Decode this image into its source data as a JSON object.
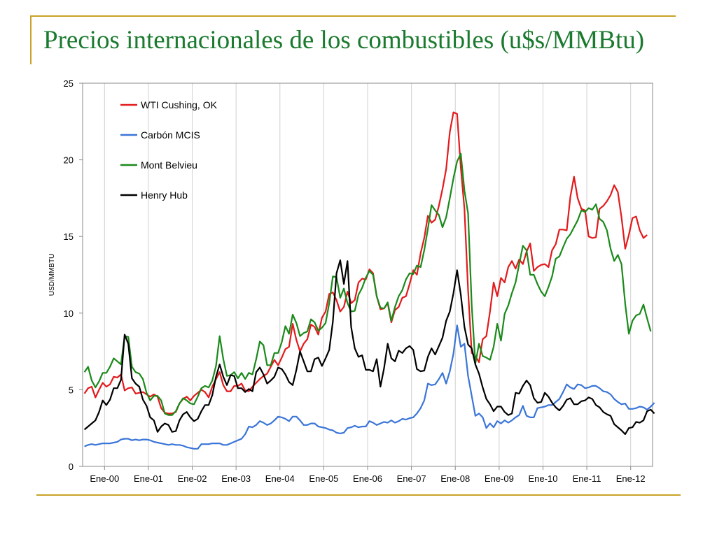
{
  "slide": {
    "title": "Precios internacionales de los combustibles (u$s/MMBtu)",
    "accent_color": "#c9a227",
    "title_color": "#1a7a2e"
  },
  "chart_data": {
    "type": "line",
    "ylabel": "USD/MMBTU",
    "ylim": [
      0,
      25
    ],
    "yticks": [
      0,
      5,
      10,
      15,
      20,
      25
    ],
    "xticks": [
      "Ene-00",
      "Ene-01",
      "Ene-02",
      "Ene-03",
      "Ene-04",
      "Ene-05",
      "Ene-06",
      "Ene-07",
      "Ene-08",
      "Ene-09",
      "Ene-10",
      "Ene-11",
      "Ene-12"
    ],
    "x_period": "monthly, Jan 2000 - Dec 2012",
    "grid": "vertical at year ticks",
    "legend_position": "top-left",
    "series": [
      {
        "name": "WTI Cushing, OK",
        "color": "#e31a1c",
        "values": [
          4.75,
          5.1,
          5.2,
          4.5,
          5.0,
          5.45,
          5.2,
          5.35,
          5.85,
          5.8,
          6.0,
          4.95,
          5.1,
          5.15,
          4.75,
          4.8,
          4.85,
          4.7,
          4.55,
          4.7,
          4.55,
          3.8,
          3.5,
          3.45,
          3.45,
          3.55,
          4.1,
          4.4,
          4.55,
          4.3,
          4.6,
          4.8,
          5.0,
          4.85,
          4.5,
          5.2,
          5.7,
          6.15,
          5.3,
          4.9,
          4.9,
          5.25,
          5.25,
          5.4,
          4.95,
          4.9,
          5.2,
          5.45,
          5.7,
          5.9,
          6.05,
          6.5,
          6.95,
          6.6,
          7.1,
          7.65,
          7.8,
          9.3,
          8.25,
          7.5,
          8.0,
          8.3,
          9.25,
          9.1,
          8.6,
          9.7,
          10.1,
          11.25,
          11.35,
          10.85,
          10.1,
          10.4,
          11.4,
          10.65,
          10.85,
          12.0,
          12.25,
          12.2,
          12.85,
          12.6,
          11.1,
          10.25,
          10.3,
          10.65,
          9.4,
          10.2,
          10.4,
          11.0,
          11.1,
          11.9,
          12.8,
          12.5,
          13.9,
          14.9,
          16.35,
          15.9,
          16.1,
          17.0,
          18.1,
          19.4,
          21.8,
          23.1,
          23.0,
          19.5,
          16.8,
          11.5,
          7.4,
          7.2,
          6.8,
          8.3,
          8.5,
          10.1,
          12.0,
          11.1,
          12.3,
          12.0,
          13.0,
          13.4,
          12.9,
          13.5,
          13.2,
          14.0,
          14.55,
          12.75,
          13.0,
          13.15,
          13.2,
          13.0,
          14.1,
          14.5,
          15.45,
          15.45,
          15.4,
          17.6,
          18.9,
          17.5,
          16.8,
          16.7,
          15.0,
          14.9,
          14.95,
          16.8,
          17.0,
          17.3,
          17.7,
          18.35,
          17.9,
          16.25,
          14.2,
          15.1,
          16.2,
          16.3,
          15.4,
          14.9,
          15.1
        ]
      },
      {
        "name": "Carbón MCIS",
        "color": "#3a75d8",
        "values": [
          1.3,
          1.4,
          1.45,
          1.4,
          1.45,
          1.5,
          1.5,
          1.5,
          1.55,
          1.6,
          1.75,
          1.8,
          1.8,
          1.7,
          1.75,
          1.7,
          1.75,
          1.75,
          1.7,
          1.6,
          1.55,
          1.5,
          1.45,
          1.4,
          1.45,
          1.4,
          1.4,
          1.35,
          1.25,
          1.2,
          1.15,
          1.15,
          1.45,
          1.45,
          1.45,
          1.5,
          1.5,
          1.5,
          1.4,
          1.4,
          1.5,
          1.6,
          1.7,
          1.8,
          2.1,
          2.6,
          2.55,
          2.7,
          2.95,
          2.85,
          2.7,
          2.8,
          3.0,
          3.25,
          3.2,
          3.1,
          2.95,
          3.25,
          3.25,
          3.0,
          2.7,
          2.7,
          2.8,
          2.8,
          2.6,
          2.55,
          2.5,
          2.4,
          2.35,
          2.2,
          2.15,
          2.2,
          2.5,
          2.55,
          2.65,
          2.55,
          2.6,
          2.6,
          2.95,
          2.85,
          2.7,
          2.8,
          2.9,
          2.85,
          3.0,
          2.85,
          2.95,
          3.1,
          3.05,
          3.15,
          3.2,
          3.45,
          3.8,
          4.3,
          5.4,
          5.3,
          5.35,
          5.7,
          6.1,
          5.4,
          6.2,
          7.35,
          9.2,
          7.8,
          8.0,
          5.9,
          4.6,
          3.3,
          3.45,
          3.2,
          2.5,
          2.8,
          2.55,
          2.95,
          2.8,
          3.0,
          2.85,
          3.0,
          3.2,
          3.35,
          3.95,
          3.3,
          3.2,
          3.2,
          3.8,
          3.85,
          3.9,
          4.0,
          4.0,
          4.2,
          4.4,
          4.85,
          5.35,
          5.15,
          5.05,
          5.35,
          5.3,
          5.1,
          5.15,
          5.25,
          5.25,
          5.1,
          4.9,
          4.85,
          4.7,
          4.4,
          4.2,
          4.05,
          4.1,
          3.75,
          3.75,
          3.8,
          3.9,
          3.85,
          3.7,
          3.9,
          4.15
        ]
      },
      {
        "name": "Mont Belvieu",
        "color": "#1a8a1a",
        "values": [
          6.15,
          6.5,
          5.6,
          5.15,
          5.55,
          6.1,
          6.1,
          6.5,
          7.05,
          6.85,
          6.65,
          8.5,
          8.45,
          6.5,
          6.15,
          6.05,
          5.7,
          4.8,
          4.3,
          4.6,
          4.6,
          4.3,
          3.45,
          3.35,
          3.35,
          3.6,
          4.1,
          4.45,
          4.3,
          4.1,
          4.05,
          4.55,
          5.1,
          5.25,
          5.15,
          5.6,
          6.55,
          8.5,
          7.0,
          5.9,
          5.95,
          6.15,
          5.75,
          6.1,
          5.7,
          6.1,
          6.0,
          7.0,
          8.15,
          7.9,
          6.6,
          6.6,
          7.4,
          7.4,
          8.1,
          9.15,
          8.65,
          9.9,
          9.35,
          8.5,
          8.7,
          8.8,
          9.6,
          9.4,
          8.85,
          9.05,
          9.35,
          10.65,
          12.4,
          12.35,
          11.0,
          11.6,
          10.65,
          10.1,
          10.15,
          11.2,
          11.65,
          12.3,
          12.75,
          12.5,
          11.1,
          10.35,
          10.3,
          10.7,
          9.5,
          10.4,
          11.1,
          11.5,
          12.2,
          12.6,
          12.55,
          13.1,
          13.0,
          14.1,
          15.5,
          17.05,
          16.7,
          16.4,
          15.6,
          16.25,
          17.5,
          18.8,
          19.9,
          20.4,
          18.0,
          16.5,
          10.5,
          6.7,
          8.0,
          7.2,
          7.1,
          6.95,
          7.8,
          9.3,
          8.2,
          9.95,
          10.5,
          11.3,
          12.0,
          13.2,
          14.4,
          14.1,
          12.5,
          12.5,
          11.9,
          11.4,
          11.1,
          11.7,
          12.4,
          13.55,
          13.7,
          14.3,
          14.85,
          15.15,
          15.6,
          16.05,
          16.7,
          16.6,
          16.85,
          16.75,
          17.1,
          16.15,
          15.95,
          15.4,
          14.2,
          13.4,
          13.8,
          13.2,
          10.6,
          8.65,
          9.5,
          9.85,
          9.95,
          10.55,
          9.65,
          8.8
        ]
      },
      {
        "name": "Henry Hub",
        "color": "#000000",
        "values": [
          2.4,
          2.6,
          2.8,
          3.0,
          3.55,
          4.3,
          4.0,
          4.35,
          5.1,
          5.1,
          5.65,
          8.6,
          8.0,
          5.75,
          5.4,
          5.2,
          4.35,
          3.95,
          3.2,
          3.0,
          2.25,
          2.6,
          2.8,
          2.7,
          2.25,
          2.3,
          3.0,
          3.4,
          3.55,
          3.2,
          2.95,
          3.1,
          3.6,
          4.0,
          4.0,
          4.65,
          5.85,
          6.65,
          5.85,
          5.3,
          5.95,
          5.9,
          5.1,
          5.1,
          4.85,
          5.05,
          4.9,
          6.15,
          6.45,
          6.0,
          5.4,
          5.6,
          5.85,
          6.45,
          6.35,
          6.0,
          5.5,
          5.3,
          6.3,
          7.5,
          6.85,
          6.2,
          6.2,
          7.0,
          7.1,
          6.55,
          7.05,
          7.6,
          9.45,
          12.6,
          13.45,
          11.9,
          13.4,
          9.1,
          7.7,
          7.15,
          7.25,
          6.3,
          6.3,
          6.2,
          7.0,
          5.2,
          6.4,
          8.0,
          7.05,
          6.85,
          7.55,
          7.4,
          7.7,
          7.85,
          7.6,
          6.35,
          6.2,
          6.25,
          7.15,
          7.7,
          7.3,
          7.85,
          8.4,
          9.5,
          10.1,
          11.3,
          12.8,
          11.2,
          9.1,
          7.95,
          7.7,
          6.65,
          6.05,
          5.15,
          4.4,
          4.05,
          3.6,
          3.9,
          3.9,
          3.55,
          3.35,
          3.45,
          4.8,
          4.75,
          5.25,
          5.6,
          5.3,
          4.45,
          4.15,
          4.2,
          4.8,
          4.55,
          4.15,
          3.85,
          3.65,
          3.95,
          4.35,
          4.45,
          4.05,
          4.05,
          4.25,
          4.3,
          4.5,
          4.4,
          4.0,
          3.85,
          3.55,
          3.4,
          3.3,
          2.75,
          2.55,
          2.35,
          2.1,
          2.5,
          2.55,
          2.9,
          2.85,
          3.0,
          3.6,
          3.7,
          3.45
        ]
      }
    ]
  }
}
